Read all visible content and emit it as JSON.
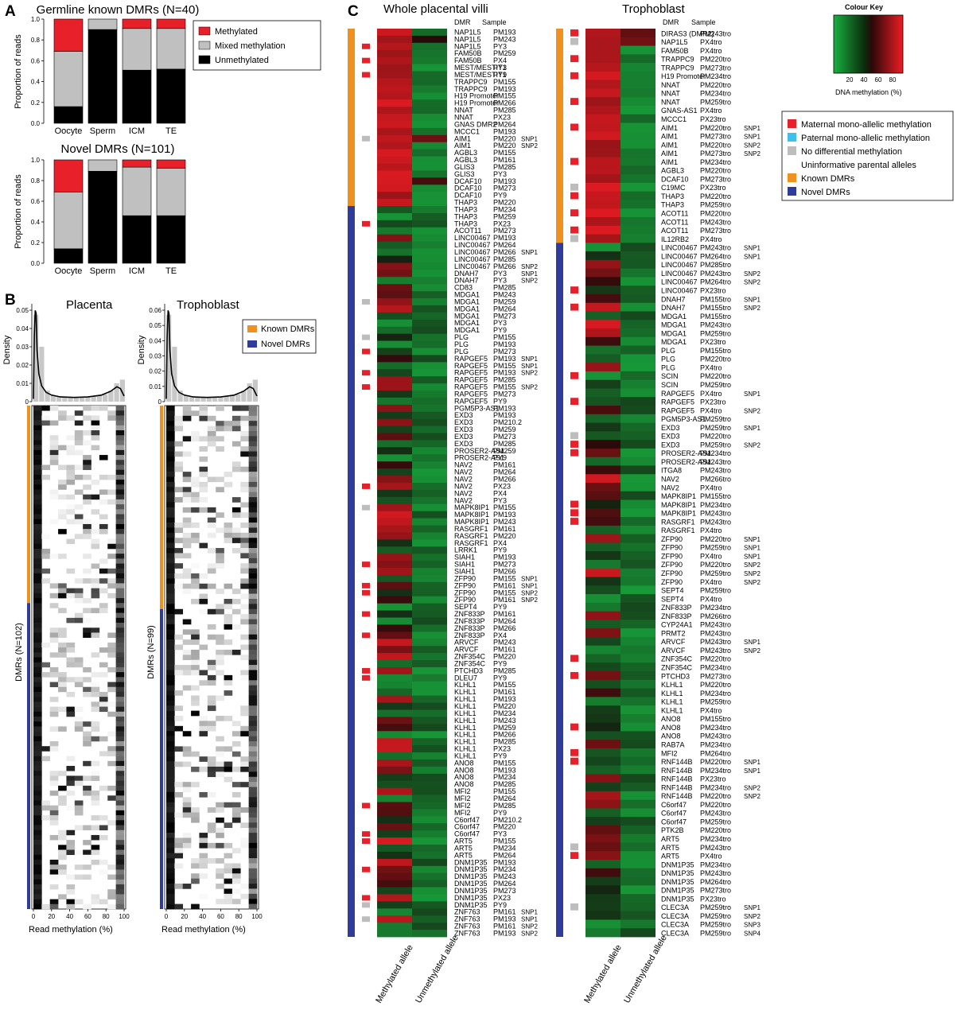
{
  "panel_a": {
    "letter": "A",
    "ylabel": "Proportion of reads",
    "legend": [
      "Methylated",
      "Mixed methylation",
      "Unmethylated"
    ],
    "chart_data": [
      {
        "type": "bar",
        "title": "Germline known DMRs (N=40)",
        "ylabel": "Proportion of reads",
        "categories": [
          "Oocyte",
          "Sperm",
          "ICM",
          "TE"
        ],
        "ylim": [
          0,
          1
        ],
        "yticks": [
          "0.0",
          "0.2",
          "0.4",
          "0.6",
          "0.8",
          "1.0"
        ],
        "series": [
          {
            "name": "Unmethylated",
            "values": [
              0.16,
              0.9,
              0.51,
              0.52
            ]
          },
          {
            "name": "Mixed methylation",
            "values": [
              0.53,
              0.1,
              0.4,
              0.39
            ]
          },
          {
            "name": "Methylated",
            "values": [
              0.31,
              0.0,
              0.09,
              0.09
            ]
          }
        ]
      },
      {
        "type": "bar",
        "title": "Novel DMRs (N=101)",
        "ylabel": "Proportion of reads",
        "categories": [
          "Oocyte",
          "Sperm",
          "ICM",
          "TE"
        ],
        "ylim": [
          0,
          1
        ],
        "yticks": [
          "0.0",
          "0.2",
          "0.4",
          "0.6",
          "0.8",
          "1.0"
        ],
        "series": [
          {
            "name": "Unmethylated",
            "values": [
              0.14,
              0.89,
              0.46,
              0.46
            ]
          },
          {
            "name": "Mixed methylation",
            "values": [
              0.55,
              0.11,
              0.47,
              0.46
            ]
          },
          {
            "name": "Methylated",
            "values": [
              0.31,
              0.0,
              0.07,
              0.08
            ]
          }
        ]
      }
    ]
  },
  "panel_b": {
    "letter": "B",
    "legend": [
      "Known DMRs",
      "Novel DMRs"
    ],
    "xlabel": "Read methylation (%)",
    "ylabel_density": "Density",
    "xticks": [
      "0",
      "20",
      "40",
      "60",
      "80",
      "100"
    ],
    "placenta": {
      "title": "Placenta",
      "dmr_label": "DMRs (N=102)",
      "yticks": [
        "0",
        "0.01",
        "0.02",
        "0.03",
        "0.04",
        "0.05"
      ],
      "known_rows": 40,
      "total_rows": 102
    },
    "trophoblast": {
      "title": "Trophoblast",
      "dmr_label": "DMRs (N=99)",
      "yticks": [
        "0",
        "0.01",
        "0.02",
        "0.03",
        "0.04",
        "0.05",
        "0.06"
      ],
      "known_rows": 40,
      "total_rows": 99
    }
  },
  "panel_c": {
    "letter": "C",
    "title_villi": "Whole placental villi",
    "title_tropho": "Trophoblast",
    "header": [
      "DMR",
      "Sample"
    ],
    "col_labels": [
      "Methylated allele",
      "Unmethylated allele"
    ],
    "colour_key": {
      "title": "Colour Key",
      "ticks": [
        "20",
        "40",
        "60",
        "80"
      ],
      "label": "DNA methylation (%)"
    },
    "legend": [
      {
        "label": "Maternal mono-allelic methylation",
        "color": "#e8202a"
      },
      {
        "label": "Paternal mono-allelic methylation",
        "color": "#3cc0ee"
      },
      {
        "label": "No differential methylation",
        "color": "#bdbdbd"
      },
      {
        "label": "Uninformative parental alleles",
        "color": "#ffffff"
      },
      {
        "label": "Known DMRs",
        "color": "#f0901e"
      },
      {
        "label": "Novel DMRs",
        "color": "#303c99"
      }
    ],
    "villi_known_rows": 25,
    "tropho_known_rows": 25,
    "villi_rows": [
      [
        "NAP1L5",
        "PM193",
        ""
      ],
      [
        "NAP1L5",
        "PM243",
        ""
      ],
      [
        "NAP1L5",
        "PY3",
        ""
      ],
      [
        "FAM50B",
        "PM259",
        ""
      ],
      [
        "FAM50B",
        "PX4",
        ""
      ],
      [
        "MEST/MESTIT1",
        "PY3",
        ""
      ],
      [
        "MEST/MESTIT1",
        "PY9",
        ""
      ],
      [
        "TRAPPC9",
        "PM155",
        ""
      ],
      [
        "TRAPPC9",
        "PM193",
        ""
      ],
      [
        "H19 Promoter",
        "PM155",
        ""
      ],
      [
        "H19 Promoter",
        "PM266",
        ""
      ],
      [
        "NNAT",
        "PM285",
        ""
      ],
      [
        "NNAT",
        "PX23",
        ""
      ],
      [
        "GNAS DMR2",
        "PM264",
        ""
      ],
      [
        "MCCC1",
        "PM193",
        ""
      ],
      [
        "AIM1",
        "PM220",
        "SNP1"
      ],
      [
        "AIM1",
        "PM220",
        "SNP2"
      ],
      [
        "AGBL3",
        "PM155",
        ""
      ],
      [
        "AGBL3",
        "PM161",
        ""
      ],
      [
        "GLIS3",
        "PM285",
        ""
      ],
      [
        "GLIS3",
        "PY3",
        ""
      ],
      [
        "DCAF10",
        "PM193",
        ""
      ],
      [
        "DCAF10",
        "PM273",
        ""
      ],
      [
        "DCAF10",
        "PY9",
        ""
      ],
      [
        "THAP3",
        "PM220",
        ""
      ],
      [
        "THAP3",
        "PM234",
        ""
      ],
      [
        "THAP3",
        "PM259",
        ""
      ],
      [
        "THAP3",
        "PX23",
        ""
      ],
      [
        "ACOT11",
        "PM273",
        ""
      ],
      [
        "LINC00467",
        "PM193",
        ""
      ],
      [
        "LINC00467",
        "PM264",
        ""
      ],
      [
        "LINC00467",
        "PM266",
        "SNP1"
      ],
      [
        "LINC00467",
        "PM285",
        ""
      ],
      [
        "LINC00467",
        "PM266",
        "SNP2"
      ],
      [
        "DNAH7",
        "PY3",
        "SNP1"
      ],
      [
        "DNAH7",
        "PY3",
        "SNP2"
      ],
      [
        "CD83",
        "PM285",
        ""
      ],
      [
        "MDGA1",
        "PM243",
        ""
      ],
      [
        "MDGA1",
        "PM259",
        ""
      ],
      [
        "MDGA1",
        "PM264",
        ""
      ],
      [
        "MDGA1",
        "PM273",
        ""
      ],
      [
        "MDGA1",
        "PY3",
        ""
      ],
      [
        "MDGA1",
        "PY9",
        ""
      ],
      [
        "PLG",
        "PM155",
        ""
      ],
      [
        "PLG",
        "PM193",
        ""
      ],
      [
        "PLG",
        "PM273",
        ""
      ],
      [
        "RAPGEF5",
        "PM193",
        "SNP1"
      ],
      [
        "RAPGEF5",
        "PM155",
        "SNP1"
      ],
      [
        "RAPGEF5",
        "PM193",
        "SNP2"
      ],
      [
        "RAPGEF5",
        "PM285",
        ""
      ],
      [
        "RAPGEF5",
        "PM155",
        "SNP2"
      ],
      [
        "RAPGEF5",
        "PM273",
        ""
      ],
      [
        "RAPGEF5",
        "PY9",
        ""
      ],
      [
        "PGM5P3-AS1",
        "PM193",
        ""
      ],
      [
        "EXD3",
        "PM193",
        ""
      ],
      [
        "EXD3",
        "PM210.2",
        ""
      ],
      [
        "EXD3",
        "PM259",
        ""
      ],
      [
        "EXD3",
        "PM273",
        ""
      ],
      [
        "EXD3",
        "PM285",
        ""
      ],
      [
        "PROSER2-AS1",
        "PM259",
        ""
      ],
      [
        "PROSER2-AS1",
        "PY9",
        ""
      ],
      [
        "NAV2",
        "PM161",
        ""
      ],
      [
        "NAV2",
        "PM264",
        ""
      ],
      [
        "NAV2",
        "PM266",
        ""
      ],
      [
        "NAV2",
        "PX23",
        ""
      ],
      [
        "NAV2",
        "PX4",
        ""
      ],
      [
        "NAV2",
        "PY3",
        ""
      ],
      [
        "MAPK8IP1",
        "PM155",
        ""
      ],
      [
        "MAPK8IP1",
        "PM193",
        ""
      ],
      [
        "MAPK8IP1",
        "PM243",
        ""
      ],
      [
        "RASGRF1",
        "PM161",
        ""
      ],
      [
        "RASGRF1",
        "PM220",
        ""
      ],
      [
        "RASGRF1",
        "PX4",
        ""
      ],
      [
        "LRRK1",
        "PY9",
        ""
      ],
      [
        "SIAH1",
        "PM193",
        ""
      ],
      [
        "SIAH1",
        "PM273",
        ""
      ],
      [
        "SIAH1",
        "PM266",
        ""
      ],
      [
        "ZFP90",
        "PM155",
        "SNP1"
      ],
      [
        "ZFP90",
        "PM161",
        "SNP1"
      ],
      [
        "ZFP90",
        "PM155",
        "SNP2"
      ],
      [
        "ZFP90",
        "PM161",
        "SNP2"
      ],
      [
        "SEPT4",
        "PY9",
        ""
      ],
      [
        "ZNF833P",
        "PM161",
        ""
      ],
      [
        "ZNF833P",
        "PM264",
        ""
      ],
      [
        "ZNF833P",
        "PM266",
        ""
      ],
      [
        "ZNF833P",
        "PX4",
        ""
      ],
      [
        "ARVCF",
        "PM243",
        ""
      ],
      [
        "ARVCF",
        "PM161",
        ""
      ],
      [
        "ZNF354C",
        "PM220",
        ""
      ],
      [
        "ZNF354C",
        "PY9",
        ""
      ],
      [
        "PTCHD3",
        "PM285",
        ""
      ],
      [
        "DLEU7",
        "PY9",
        ""
      ],
      [
        "KLHL1",
        "PM155",
        ""
      ],
      [
        "KLHL1",
        "PM161",
        ""
      ],
      [
        "KLHL1",
        "PM193",
        ""
      ],
      [
        "KLHL1",
        "PM220",
        ""
      ],
      [
        "KLHL1",
        "PM234",
        ""
      ],
      [
        "KLHL1",
        "PM243",
        ""
      ],
      [
        "KLHL1",
        "PM259",
        ""
      ],
      [
        "KLHL1",
        "PM266",
        ""
      ],
      [
        "KLHL1",
        "PM285",
        ""
      ],
      [
        "KLHL1",
        "PX23",
        ""
      ],
      [
        "KLHL1",
        "PY9",
        ""
      ],
      [
        "ANO8",
        "PM155",
        ""
      ],
      [
        "ANO8",
        "PM193",
        ""
      ],
      [
        "ANO8",
        "PM234",
        ""
      ],
      [
        "ANO8",
        "PM285",
        ""
      ],
      [
        "MFI2",
        "PM155",
        ""
      ],
      [
        "MFI2",
        "PM264",
        ""
      ],
      [
        "MFI2",
        "PM285",
        ""
      ],
      [
        "MFI2",
        "PY9",
        ""
      ],
      [
        "C6orf47",
        "PM210.2",
        ""
      ],
      [
        "C6orf47",
        "PM220",
        ""
      ],
      [
        "C6orf47",
        "PY3",
        ""
      ],
      [
        "ART5",
        "PM155",
        ""
      ],
      [
        "ART5",
        "PM234",
        ""
      ],
      [
        "ART5",
        "PM264",
        ""
      ],
      [
        "DNM1P35",
        "PM193",
        ""
      ],
      [
        "DNM1P35",
        "PM234",
        ""
      ],
      [
        "DNM1P35",
        "PM243",
        ""
      ],
      [
        "DNM1P35",
        "PM264",
        ""
      ],
      [
        "DNM1P35",
        "PM273",
        ""
      ],
      [
        "DNM1P35",
        "PX23",
        ""
      ],
      [
        "DNM1P35",
        "PY9",
        ""
      ],
      [
        "ZNF763",
        "PM161",
        "SNP1"
      ],
      [
        "ZNF763",
        "PM193",
        "SNP1"
      ],
      [
        "ZNF763",
        "PM161",
        "SNP2"
      ],
      [
        "ZNF763",
        "PM193",
        "SNP2"
      ]
    ],
    "tropho_rows": [
      [
        "DIRAS3 (DMR2)",
        "PM243tro",
        ""
      ],
      [
        "NAP1L5",
        "PX4tro",
        ""
      ],
      [
        "FAM50B",
        "PX4tro",
        ""
      ],
      [
        "TRAPPC9",
        "PM220tro",
        ""
      ],
      [
        "TRAPPC9",
        "PM273tro",
        ""
      ],
      [
        "H19 Promoter",
        "PM234tro",
        ""
      ],
      [
        "NNAT",
        "PM220tro",
        ""
      ],
      [
        "NNAT",
        "PM234tro",
        ""
      ],
      [
        "NNAT",
        "PM259tro",
        ""
      ],
      [
        "GNAS-AS1",
        "PX4tro",
        ""
      ],
      [
        "MCCC1",
        "PX23tro",
        ""
      ],
      [
        "AIM1",
        "PM220tro",
        "SNP1"
      ],
      [
        "AIM1",
        "PM273tro",
        "SNP1"
      ],
      [
        "AIM1",
        "PM220tro",
        "SNP2"
      ],
      [
        "AIM1",
        "PM273tro",
        "SNP2"
      ],
      [
        "AIM1",
        "PM234tro",
        ""
      ],
      [
        "AGBL3",
        "PM220tro",
        ""
      ],
      [
        "DCAF10",
        "PM273tro",
        ""
      ],
      [
        "C19MC",
        "PX23tro",
        ""
      ],
      [
        "THAP3",
        "PM220tro",
        ""
      ],
      [
        "THAP3",
        "PM259tro",
        ""
      ],
      [
        "ACOT11",
        "PM220tro",
        ""
      ],
      [
        "ACOT11",
        "PM243tro",
        ""
      ],
      [
        "ACOT11",
        "PM273tro",
        ""
      ],
      [
        "IL12RB2",
        "PX4tro",
        ""
      ],
      [
        "LINC00467",
        "PM243tro",
        "SNP1"
      ],
      [
        "LINC00467",
        "PM264tro",
        "SNP1"
      ],
      [
        "LINC00467",
        "PM285tro",
        ""
      ],
      [
        "LINC00467",
        "PM243tro",
        "SNP2"
      ],
      [
        "LINC00467",
        "PM264tro",
        "SNP2"
      ],
      [
        "LINC00467",
        "PX23tro",
        ""
      ],
      [
        "DNAH7",
        "PM155tro",
        "SNP1"
      ],
      [
        "DNAH7",
        "PM155tro",
        "SNP2"
      ],
      [
        "MDGA1",
        "PM155tro",
        ""
      ],
      [
        "MDGA1",
        "PM243tro",
        ""
      ],
      [
        "MDGA1",
        "PM259tro",
        ""
      ],
      [
        "MDGA1",
        "PX23tro",
        ""
      ],
      [
        "PLG",
        "PM155tro",
        ""
      ],
      [
        "PLG",
        "PM220tro",
        ""
      ],
      [
        "PLG",
        "PX4tro",
        ""
      ],
      [
        "SCIN",
        "PM220tro",
        ""
      ],
      [
        "SCIN",
        "PM259tro",
        ""
      ],
      [
        "RAPGEF5",
        "PX4tro",
        "SNP1"
      ],
      [
        "RAPGEF5",
        "PX23tro",
        ""
      ],
      [
        "RAPGEF5",
        "PX4tro",
        "SNP2"
      ],
      [
        "PGM5P3-AS1",
        "PM259tro",
        ""
      ],
      [
        "EXD3",
        "PM259tro",
        "SNP1"
      ],
      [
        "EXD3",
        "PM220tro",
        ""
      ],
      [
        "EXD3",
        "PM259tro",
        "SNP2"
      ],
      [
        "PROSER2-AS1",
        "PM234tro",
        ""
      ],
      [
        "PROSER2-AS1",
        "PM243tro",
        ""
      ],
      [
        "ITGA8",
        "PM243tro",
        ""
      ],
      [
        "NAV2",
        "PM266tro",
        ""
      ],
      [
        "NAV2",
        "PX4tro",
        ""
      ],
      [
        "MAPK8IP1",
        "PM155tro",
        ""
      ],
      [
        "MAPK8IP1",
        "PM234tro",
        ""
      ],
      [
        "MAPK8IP1",
        "PM243tro",
        ""
      ],
      [
        "RASGRF1",
        "PM243tro",
        ""
      ],
      [
        "RASGRF1",
        "PX4tro",
        ""
      ],
      [
        "ZFP90",
        "PM220tro",
        "SNP1"
      ],
      [
        "ZFP90",
        "PM259tro",
        "SNP1"
      ],
      [
        "ZFP90",
        "PX4tro",
        "SNP1"
      ],
      [
        "ZFP90",
        "PM220tro",
        "SNP2"
      ],
      [
        "ZFP90",
        "PM259tro",
        "SNP2"
      ],
      [
        "ZFP90",
        "PX4tro",
        "SNP2"
      ],
      [
        "SEPT4",
        "PM259tro",
        ""
      ],
      [
        "SEPT4",
        "PX4tro",
        ""
      ],
      [
        "ZNF833P",
        "PM234tro",
        ""
      ],
      [
        "ZNF833P",
        "PM266tro",
        ""
      ],
      [
        "CYP24A1",
        "PM243tro",
        ""
      ],
      [
        "PRMT2",
        "PM243tro",
        ""
      ],
      [
        "ARVCF",
        "PM243tro",
        "SNP1"
      ],
      [
        "ARVCF",
        "PM243tro",
        "SNP2"
      ],
      [
        "ZNF354C",
        "PM220tro",
        ""
      ],
      [
        "ZNF354C",
        "PM234tro",
        ""
      ],
      [
        "PTCHD3",
        "PM273tro",
        ""
      ],
      [
        "KLHL1",
        "PM220tro",
        ""
      ],
      [
        "KLHL1",
        "PM234tro",
        ""
      ],
      [
        "KLHL1",
        "PM259tro",
        ""
      ],
      [
        "KLHL1",
        "PX4tro",
        ""
      ],
      [
        "ANO8",
        "PM155tro",
        ""
      ],
      [
        "ANO8",
        "PM234tro",
        ""
      ],
      [
        "ANO8",
        "PM243tro",
        ""
      ],
      [
        "RAB7A",
        "PM234tro",
        ""
      ],
      [
        "MFI2",
        "PM264tro",
        ""
      ],
      [
        "RNF144B",
        "PM220tro",
        "SNP1"
      ],
      [
        "RNF144B",
        "PM234tro",
        "SNP1"
      ],
      [
        "RNF144B",
        "PX23tro",
        ""
      ],
      [
        "RNF144B",
        "PM234tro",
        "SNP2"
      ],
      [
        "RNF144B",
        "PM220tro",
        "SNP2"
      ],
      [
        "C6orf47",
        "PM220tro",
        ""
      ],
      [
        "C6orf47",
        "PM243tro",
        ""
      ],
      [
        "C6orf47",
        "PM259tro",
        ""
      ],
      [
        "PTK2B",
        "PM220tro",
        ""
      ],
      [
        "ART5",
        "PM234tro",
        ""
      ],
      [
        "ART5",
        "PM243tro",
        ""
      ],
      [
        "ART5",
        "PX4tro",
        ""
      ],
      [
        "DNM1P35",
        "PM234tro",
        ""
      ],
      [
        "DNM1P35",
        "PM243tro",
        ""
      ],
      [
        "DNM1P35",
        "PM264tro",
        ""
      ],
      [
        "DNM1P35",
        "PM273tro",
        ""
      ],
      [
        "DNM1P35",
        "PX23tro",
        ""
      ],
      [
        "CLEC3A",
        "PM259tro",
        "SNP1"
      ],
      [
        "CLEC3A",
        "PM259tro",
        "SNP2"
      ],
      [
        "CLEC3A",
        "PM259tro",
        "SNP3"
      ],
      [
        "CLEC3A",
        "PM259tro",
        "SNP4"
      ]
    ]
  }
}
